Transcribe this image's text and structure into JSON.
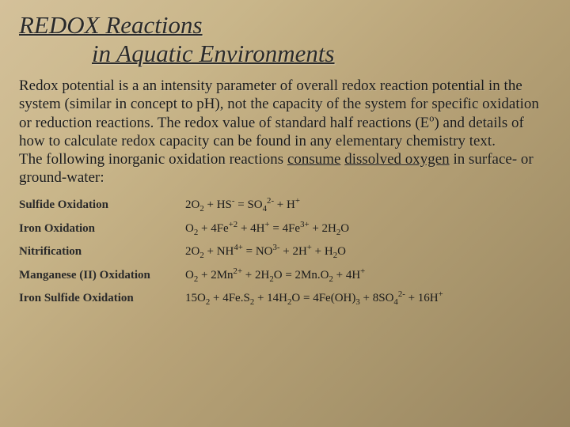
{
  "title": {
    "line1": "REDOX Reactions",
    "line2": "in Aquatic Environments"
  },
  "paragraph": {
    "p1a": "Redox potential is a an intensity parameter of overall redox reaction potential in the system (similar in concept to pH), not the capacity of the system for specific oxidation or reduction reactions. The redox value of standard half reactions (E",
    "p1sup": "o",
    "p1b": ") and details of how to calculate redox capacity can be found in any elementary chemistry text.",
    "p2a": "The following inorganic oxidation reactions ",
    "p2u1": "consume",
    "p2b": " ",
    "p2u2": "dissolved oxygen",
    "p2c": " in surface- or ground-water:"
  },
  "reactions": [
    {
      "name": "Sulfide Oxidation",
      "eq": "2O<sub>2</sub> + HS<sup>-</sup> = SO<sub>4</sub><sup>2-</sup> + H<sup>+</sup>"
    },
    {
      "name": "Iron Oxidation",
      "eq": "O<sub>2</sub> + 4Fe<sup>+2</sup> + 4H<sup>+</sup> = 4Fe<sup>3+</sup> + 2H<sub>2</sub>O"
    },
    {
      "name": "Nitrification",
      "eq": "2O<sub>2</sub> + NH<sup>4+</sup> = NO<sup>3-</sup> + 2H<sup>+</sup> + H<sub>2</sub>O"
    },
    {
      "name": "Manganese (II) Oxidation",
      "eq": "O<sub>2</sub> + 2Mn<sup>2+</sup> + 2H<sub>2</sub>O = 2Mn.O<sub>2</sub> + 4H<sup>+</sup>"
    },
    {
      "name": "Iron Sulfide Oxidation",
      "eq": "15O<sub>2</sub> + 4Fe.S<sub>2</sub> + 14H<sub>2</sub>O = 4Fe(OH)<sub>3</sub> + 8SO<sub>4</sub><sup>2-</sup> + 16H<sup>+</sup>"
    }
  ],
  "style": {
    "title_fontsize": 31,
    "title_color": "#2a2a2a",
    "body_fontsize": 19,
    "body_color": "#1a1a1a",
    "rx_fontsize": 15,
    "rx_name_width": 210,
    "bg_gradient": [
      "#d4c19a",
      "#c9b68a",
      "#b8a378",
      "#a8956c",
      "#988560"
    ]
  }
}
